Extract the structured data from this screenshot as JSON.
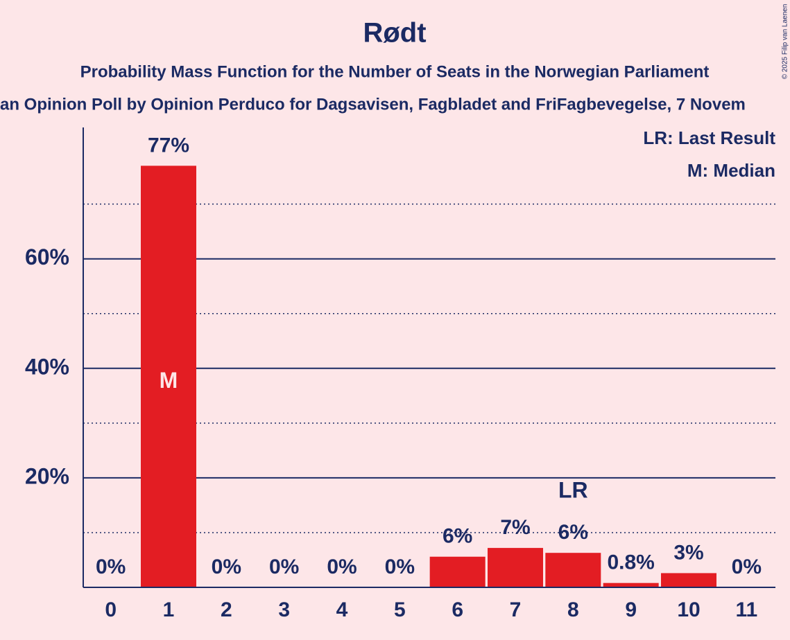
{
  "chart_data": {
    "type": "bar",
    "title": "Rødt",
    "subtitle": "Probability Mass Function for the Number of Seats in the Norwegian Parliament",
    "subtitle2": "an Opinion Poll by Opinion Perduco for Dagsavisen, Fagbladet and FriFagbevegelse, 7 Novem",
    "copyright": "© 2025 Filip van Laenen",
    "legend": [
      "LR: Last Result",
      "M: Median"
    ],
    "categories": [
      "0",
      "1",
      "2",
      "3",
      "4",
      "5",
      "6",
      "7",
      "8",
      "9",
      "10",
      "11"
    ],
    "values": [
      0,
      77,
      0,
      0,
      0,
      0,
      5.6,
      7.2,
      6.3,
      0.8,
      2.6,
      0
    ],
    "value_labels": [
      "0%",
      "77%",
      "0%",
      "0%",
      "0%",
      "0%",
      "6%",
      "7%",
      "6%",
      "0.8%",
      "3%",
      "0%"
    ],
    "annotations": [
      {
        "text": "M",
        "category": "1"
      },
      {
        "text": "LR",
        "category": "8"
      }
    ],
    "color": "#e31d23",
    "ylim": [
      0,
      84
    ],
    "yticks": [
      {
        "value": 20,
        "label": "20%"
      },
      {
        "value": 40,
        "label": "40%"
      },
      {
        "value": 60,
        "label": "60%"
      }
    ],
    "minor_yticks": [
      10,
      30,
      50,
      70
    ],
    "grid": true
  }
}
